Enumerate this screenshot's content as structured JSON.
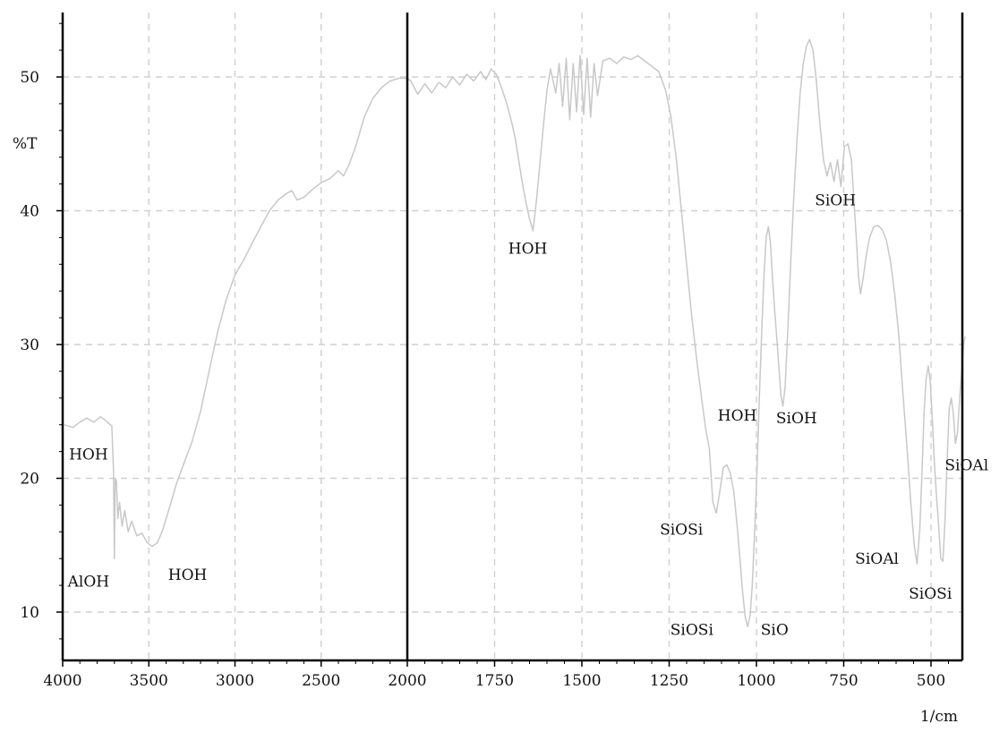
{
  "chart_data": {
    "type": "line",
    "title": "",
    "xlabel": "1/cm",
    "ylabel": "%T",
    "xlim": [
      4000,
      400
    ],
    "ylim": [
      7,
      55
    ],
    "x_reversed": true,
    "grid": true,
    "x_split_breaks": [
      2000
    ],
    "x_ticks": [
      4000,
      3500,
      3000,
      2500,
      2000,
      1750,
      1500,
      1250,
      1000,
      750,
      500
    ],
    "x_tick_labels": [
      "4000",
      "3500",
      "3000",
      "2500",
      "2000",
      "1750",
      "1500",
      "1250",
      "1000",
      "750",
      "500"
    ],
    "y_ticks": [
      10,
      20,
      30,
      40,
      50
    ],
    "y_tick_labels": [
      "10",
      "20",
      "30",
      "40",
      "50"
    ],
    "series": [
      {
        "color": "#c8c8c8",
        "points": [
          [
            3990,
            24.0
          ],
          [
            3940,
            23.8
          ],
          [
            3900,
            24.2
          ],
          [
            3860,
            24.5
          ],
          [
            3820,
            24.2
          ],
          [
            3780,
            24.6
          ],
          [
            3740,
            24.2
          ],
          [
            3715,
            23.9
          ],
          [
            3705,
            20.5
          ],
          [
            3700,
            14.0
          ],
          [
            3695,
            20.0
          ],
          [
            3688,
            19.8
          ],
          [
            3680,
            17.0
          ],
          [
            3670,
            18.2
          ],
          [
            3655,
            16.4
          ],
          [
            3640,
            17.6
          ],
          [
            3620,
            16.0
          ],
          [
            3600,
            16.8
          ],
          [
            3570,
            15.7
          ],
          [
            3540,
            15.9
          ],
          [
            3510,
            15.2
          ],
          [
            3480,
            14.9
          ],
          [
            3450,
            15.2
          ],
          [
            3420,
            16.1
          ],
          [
            3380,
            17.8
          ],
          [
            3340,
            19.6
          ],
          [
            3300,
            21.0
          ],
          [
            3250,
            22.7
          ],
          [
            3200,
            25.0
          ],
          [
            3150,
            28.0
          ],
          [
            3100,
            31.0
          ],
          [
            3050,
            33.4
          ],
          [
            3000,
            35.2
          ],
          [
            2950,
            36.3
          ],
          [
            2900,
            37.6
          ],
          [
            2850,
            38.8
          ],
          [
            2800,
            40.0
          ],
          [
            2750,
            40.8
          ],
          [
            2700,
            41.3
          ],
          [
            2670,
            41.5
          ],
          [
            2640,
            40.8
          ],
          [
            2600,
            41.0
          ],
          [
            2550,
            41.6
          ],
          [
            2500,
            42.1
          ],
          [
            2450,
            42.4
          ],
          [
            2400,
            43.0
          ],
          [
            2370,
            42.6
          ],
          [
            2340,
            43.4
          ],
          [
            2300,
            44.8
          ],
          [
            2250,
            47.0
          ],
          [
            2200,
            48.4
          ],
          [
            2150,
            49.2
          ],
          [
            2100,
            49.7
          ],
          [
            2050,
            49.9
          ],
          [
            2000,
            49.9
          ],
          [
            1990,
            49.7
          ],
          [
            1970,
            48.7
          ],
          [
            1950,
            49.5
          ],
          [
            1930,
            48.8
          ],
          [
            1910,
            49.6
          ],
          [
            1890,
            49.2
          ],
          [
            1870,
            50.0
          ],
          [
            1850,
            49.4
          ],
          [
            1830,
            50.2
          ],
          [
            1810,
            49.7
          ],
          [
            1790,
            50.4
          ],
          [
            1775,
            49.8
          ],
          [
            1760,
            50.6
          ],
          [
            1745,
            50.2
          ],
          [
            1730,
            49.2
          ],
          [
            1715,
            48.0
          ],
          [
            1700,
            46.5
          ],
          [
            1690,
            45.3
          ],
          [
            1680,
            43.6
          ],
          [
            1670,
            42.0
          ],
          [
            1660,
            40.6
          ],
          [
            1650,
            39.4
          ],
          [
            1640,
            38.5
          ],
          [
            1630,
            40.8
          ],
          [
            1620,
            43.6
          ],
          [
            1610,
            46.4
          ],
          [
            1600,
            49.0
          ],
          [
            1590,
            50.6
          ],
          [
            1575,
            48.8
          ],
          [
            1565,
            51.0
          ],
          [
            1555,
            47.8
          ],
          [
            1545,
            51.4
          ],
          [
            1535,
            46.8
          ],
          [
            1525,
            51.0
          ],
          [
            1515,
            47.4
          ],
          [
            1505,
            51.6
          ],
          [
            1495,
            47.2
          ],
          [
            1485,
            51.4
          ],
          [
            1475,
            47.0
          ],
          [
            1465,
            51.0
          ],
          [
            1455,
            48.6
          ],
          [
            1440,
            51.2
          ],
          [
            1420,
            51.4
          ],
          [
            1400,
            51.0
          ],
          [
            1380,
            51.5
          ],
          [
            1360,
            51.3
          ],
          [
            1340,
            51.6
          ],
          [
            1320,
            51.2
          ],
          [
            1300,
            50.8
          ],
          [
            1280,
            50.4
          ],
          [
            1260,
            49.0
          ],
          [
            1245,
            47.0
          ],
          [
            1230,
            44.0
          ],
          [
            1215,
            40.0
          ],
          [
            1200,
            36.0
          ],
          [
            1185,
            32.0
          ],
          [
            1170,
            28.6
          ],
          [
            1155,
            25.6
          ],
          [
            1145,
            23.6
          ],
          [
            1135,
            22.2
          ],
          [
            1125,
            18.2
          ],
          [
            1115,
            17.4
          ],
          [
            1105,
            19.0
          ],
          [
            1095,
            20.8
          ],
          [
            1085,
            21.0
          ],
          [
            1075,
            20.4
          ],
          [
            1065,
            19.0
          ],
          [
            1055,
            16.4
          ],
          [
            1048,
            14.2
          ],
          [
            1040,
            11.6
          ],
          [
            1032,
            9.6
          ],
          [
            1025,
            8.9
          ],
          [
            1018,
            9.8
          ],
          [
            1012,
            12.0
          ],
          [
            1005,
            16.0
          ],
          [
            998,
            21.0
          ],
          [
            992,
            25.8
          ],
          [
            985,
            31.0
          ],
          [
            978,
            35.4
          ],
          [
            972,
            38.0
          ],
          [
            966,
            38.8
          ],
          [
            960,
            37.6
          ],
          [
            955,
            35.4
          ],
          [
            948,
            32.6
          ],
          [
            942,
            30.6
          ],
          [
            936,
            28.4
          ],
          [
            930,
            26.2
          ],
          [
            924,
            25.4
          ],
          [
            918,
            26.8
          ],
          [
            910,
            31.2
          ],
          [
            902,
            36.0
          ],
          [
            893,
            41.0
          ],
          [
            884,
            45.2
          ],
          [
            875,
            48.8
          ],
          [
            866,
            51.0
          ],
          [
            857,
            52.3
          ],
          [
            848,
            52.8
          ],
          [
            838,
            52.0
          ],
          [
            828,
            49.6
          ],
          [
            818,
            46.4
          ],
          [
            808,
            43.8
          ],
          [
            798,
            42.6
          ],
          [
            788,
            43.6
          ],
          [
            778,
            42.2
          ],
          [
            768,
            43.8
          ],
          [
            758,
            41.8
          ],
          [
            748,
            44.8
          ],
          [
            738,
            45.0
          ],
          [
            728,
            43.8
          ],
          [
            720,
            40.4
          ],
          [
            714,
            38.0
          ],
          [
            708,
            35.2
          ],
          [
            702,
            33.8
          ],
          [
            694,
            35.0
          ],
          [
            686,
            36.6
          ],
          [
            676,
            38.0
          ],
          [
            664,
            38.8
          ],
          [
            652,
            38.9
          ],
          [
            640,
            38.6
          ],
          [
            628,
            37.8
          ],
          [
            616,
            36.2
          ],
          [
            604,
            33.8
          ],
          [
            592,
            30.6
          ],
          [
            580,
            26.2
          ],
          [
            568,
            22.0
          ],
          [
            558,
            18.2
          ],
          [
            548,
            15.0
          ],
          [
            540,
            13.6
          ],
          [
            532,
            16.2
          ],
          [
            526,
            20.4
          ],
          [
            520,
            24.8
          ],
          [
            514,
            27.4
          ],
          [
            508,
            28.4
          ],
          [
            502,
            27.2
          ],
          [
            496,
            24.2
          ],
          [
            490,
            21.0
          ],
          [
            484,
            18.6
          ],
          [
            478,
            16.4
          ],
          [
            472,
            14.0
          ],
          [
            466,
            13.8
          ],
          [
            460,
            16.8
          ],
          [
            454,
            21.2
          ],
          [
            448,
            25.2
          ],
          [
            442,
            26.0
          ],
          [
            436,
            24.8
          ],
          [
            430,
            22.6
          ],
          [
            424,
            23.4
          ],
          [
            418,
            26.0
          ],
          [
            412,
            28.0
          ],
          [
            406,
            30.2
          ],
          [
            402,
            30.6
          ]
        ]
      }
    ],
    "annotations": [
      {
        "text": "HOH",
        "x": 3850,
        "y": 21.4
      },
      {
        "text": "AlOH",
        "x": 3850,
        "y": 11.9
      },
      {
        "text": "HOH",
        "x": 3275,
        "y": 12.4
      },
      {
        "text": "HOH",
        "x": 1655,
        "y": 36.8
      },
      {
        "text": "SiOSi",
        "x": 1215,
        "y": 15.8
      },
      {
        "text": "SiOSi",
        "x": 1185,
        "y": 8.3
      },
      {
        "text": "HOH",
        "x": 1055,
        "y": 24.3
      },
      {
        "text": "SiO",
        "x": 948,
        "y": 8.3
      },
      {
        "text": "SiOH",
        "x": 885,
        "y": 24.1
      },
      {
        "text": "SiOH",
        "x": 774,
        "y": 40.4
      },
      {
        "text": "SiOAl",
        "x": 655,
        "y": 13.6
      },
      {
        "text": "SiOSi",
        "x": 502,
        "y": 11.0
      },
      {
        "text": "SiOAl",
        "x": 398,
        "y": 20.6
      }
    ]
  }
}
